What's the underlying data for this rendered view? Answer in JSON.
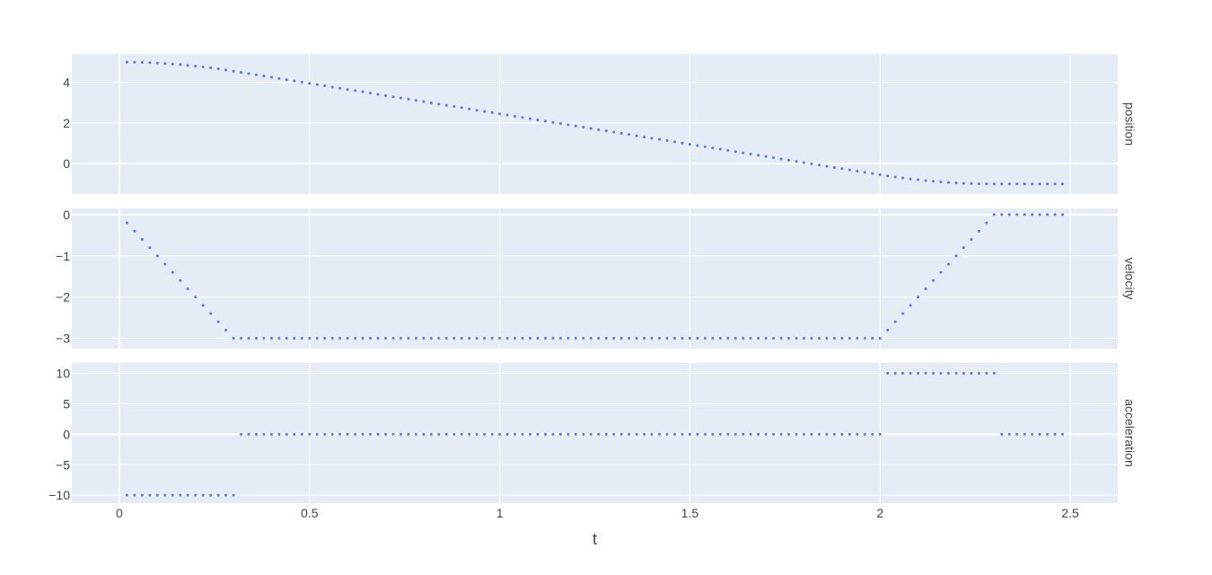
{
  "chart_data": {
    "type": "scatter",
    "xlabel": "t",
    "x_range": [
      -0.125,
      2.625
    ],
    "x_ticks": [
      0,
      0.5,
      1,
      1.5,
      2,
      2.5
    ],
    "x_tick_labels": [
      "0",
      "0.5",
      "1",
      "1.5",
      "2",
      "2.5"
    ],
    "grid": true,
    "marker_color": "#636efa",
    "panel_background": "#e5ecf6",
    "facets": [
      {
        "name": "position",
        "label": "position",
        "ylim": [
          -1.5,
          5.4
        ],
        "y_ticks": [
          0,
          2,
          4
        ],
        "y_tick_labels": [
          "0",
          "2",
          "4"
        ]
      },
      {
        "name": "velocity",
        "label": "velocity",
        "ylim": [
          -3.25,
          0.15
        ],
        "y_ticks": [
          -3,
          -2,
          -1,
          0
        ],
        "y_tick_labels": [
          "−3",
          "−2",
          "−1",
          "0"
        ]
      },
      {
        "name": "acceleration",
        "label": "acceleration",
        "ylim": [
          -11.3,
          11.7
        ],
        "y_ticks": [
          -10,
          -5,
          0,
          5,
          10
        ],
        "y_tick_labels": [
          "−10",
          "−5",
          "0",
          "5",
          "10"
        ]
      }
    ],
    "series_model": {
      "t_start": 0.02,
      "t_step": 0.02,
      "t_end": 2.48,
      "initial_position": 5,
      "initial_velocity": 0,
      "acceleration_segments": [
        {
          "t_from": 0.0,
          "t_to": 0.3,
          "a": -10
        },
        {
          "t_from": 0.3,
          "t_to": 2.0,
          "a": 0
        },
        {
          "t_from": 2.0,
          "t_to": 2.3,
          "a": 10
        },
        {
          "t_from": 2.3,
          "t_to": 2.5,
          "a": 0
        }
      ]
    }
  }
}
